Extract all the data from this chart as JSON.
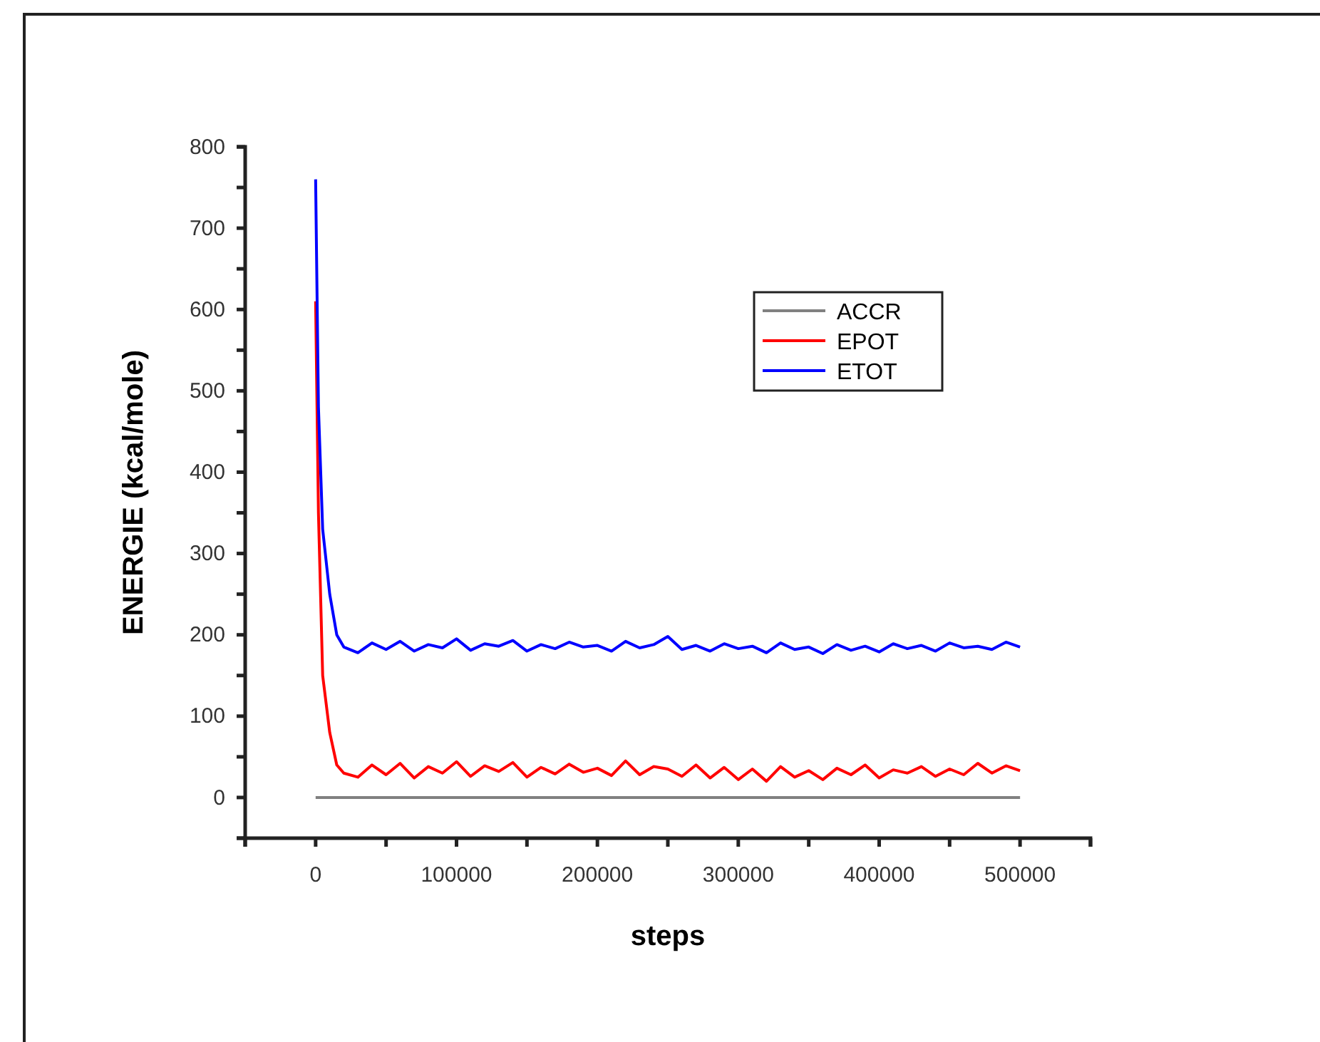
{
  "chart_data": {
    "type": "line",
    "xlabel": "steps",
    "ylabel": "ENERGIE (kcal/mole)",
    "xlim": [
      -50000,
      550000
    ],
    "ylim": [
      -50,
      800
    ],
    "xticks": [
      {
        "value": -50000,
        "label": null
      },
      0,
      {
        "value": 50000,
        "label": null
      },
      100000,
      {
        "value": 150000,
        "label": null
      },
      200000,
      {
        "value": 250000,
        "label": null
      },
      300000,
      {
        "value": 350000,
        "label": null
      },
      400000,
      {
        "value": 450000,
        "label": null
      },
      500000,
      {
        "value": 550000,
        "label": null
      }
    ],
    "yticks": [
      {
        "value": -50,
        "label": null
      },
      0,
      {
        "value": 50,
        "label": null
      },
      100,
      {
        "value": 150,
        "label": null
      },
      200,
      {
        "value": 250,
        "label": null
      },
      300,
      {
        "value": 350,
        "label": null
      },
      400,
      {
        "value": 450,
        "label": null
      },
      500,
      {
        "value": 550,
        "label": null
      },
      600,
      {
        "value": 650,
        "label": null
      },
      700,
      {
        "value": 750,
        "label": null
      },
      800
    ],
    "grid": false,
    "legend": "top right",
    "line_style": "solid",
    "marker": "none",
    "series": [
      {
        "name": "ACCR",
        "color": "#808080",
        "x": [
          0,
          500000
        ],
        "values": [
          0,
          0
        ]
      },
      {
        "name": "EPOT",
        "color": "#ff0000",
        "x": [
          0,
          2000,
          5000,
          10000,
          15000,
          20000,
          30000,
          40000,
          50000,
          60000,
          70000,
          80000,
          90000,
          100000,
          110000,
          120000,
          130000,
          140000,
          150000,
          160000,
          170000,
          180000,
          190000,
          200000,
          210000,
          220000,
          230000,
          240000,
          250000,
          260000,
          270000,
          280000,
          290000,
          300000,
          310000,
          320000,
          330000,
          340000,
          350000,
          360000,
          370000,
          380000,
          390000,
          400000,
          410000,
          420000,
          430000,
          440000,
          450000,
          460000,
          470000,
          480000,
          490000,
          500000
        ],
        "values": [
          610,
          350,
          150,
          80,
          40,
          30,
          25,
          40,
          28,
          42,
          24,
          38,
          30,
          44,
          26,
          39,
          32,
          43,
          25,
          37,
          29,
          41,
          31,
          36,
          27,
          45,
          28,
          38,
          35,
          26,
          40,
          24,
          37,
          22,
          35,
          20,
          38,
          25,
          33,
          22,
          36,
          28,
          40,
          24,
          34,
          30,
          38,
          26,
          35,
          28,
          42,
          30,
          39,
          33
        ]
      },
      {
        "name": "ETOT",
        "color": "#0000ff",
        "x": [
          0,
          2000,
          5000,
          10000,
          15000,
          20000,
          30000,
          40000,
          50000,
          60000,
          70000,
          80000,
          90000,
          100000,
          110000,
          120000,
          130000,
          140000,
          150000,
          160000,
          170000,
          180000,
          190000,
          200000,
          210000,
          220000,
          230000,
          240000,
          250000,
          260000,
          270000,
          280000,
          290000,
          300000,
          310000,
          320000,
          330000,
          340000,
          350000,
          360000,
          370000,
          380000,
          390000,
          400000,
          410000,
          420000,
          430000,
          440000,
          450000,
          460000,
          470000,
          480000,
          490000,
          500000
        ],
        "values": [
          760,
          480,
          330,
          250,
          200,
          185,
          178,
          190,
          182,
          192,
          180,
          188,
          184,
          195,
          181,
          189,
          186,
          193,
          180,
          188,
          183,
          191,
          185,
          187,
          180,
          192,
          184,
          188,
          198,
          182,
          187,
          180,
          189,
          183,
          186,
          178,
          190,
          182,
          185,
          177,
          188,
          181,
          186,
          179,
          189,
          183,
          187,
          180,
          190,
          184,
          186,
          182,
          191,
          185
        ]
      }
    ]
  }
}
